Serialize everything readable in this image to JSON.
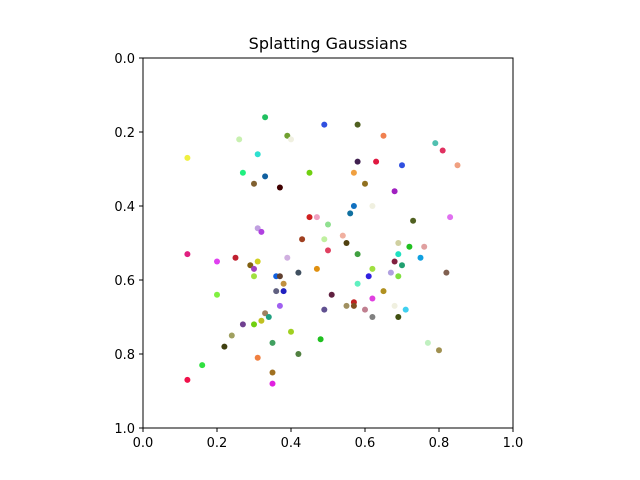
{
  "chart_data": {
    "type": "scatter",
    "title": "Splatting Gaussians",
    "xlabel": "",
    "ylabel": "",
    "xlim": [
      0.0,
      1.0
    ],
    "ylim": [
      1.0,
      0.0
    ],
    "y_inverted": true,
    "grid": false,
    "legend": "none",
    "x_ticks": [
      "0.0",
      "0.2",
      "0.4",
      "0.6",
      "0.8",
      "1.0"
    ],
    "y_ticks": [
      "0.0",
      "0.2",
      "0.4",
      "0.6",
      "0.8",
      "1.0"
    ],
    "points": [
      {
        "x": 0.31,
        "y": 0.26,
        "color": "#2ee0d0"
      },
      {
        "x": 0.26,
        "y": 0.22,
        "color": "#c8f0b0"
      },
      {
        "x": 0.33,
        "y": 0.16,
        "color": "#20c060"
      },
      {
        "x": 0.39,
        "y": 0.21,
        "color": "#70a030"
      },
      {
        "x": 0.4,
        "y": 0.22,
        "color": "#f0f0e0"
      },
      {
        "x": 0.49,
        "y": 0.18,
        "color": "#3050e0"
      },
      {
        "x": 0.58,
        "y": 0.18,
        "color": "#506020"
      },
      {
        "x": 0.65,
        "y": 0.21,
        "color": "#f08050"
      },
      {
        "x": 0.79,
        "y": 0.23,
        "color": "#50c0b0"
      },
      {
        "x": 0.81,
        "y": 0.25,
        "color": "#e03060"
      },
      {
        "x": 0.12,
        "y": 0.27,
        "color": "#f0f040"
      },
      {
        "x": 0.58,
        "y": 0.28,
        "color": "#402050"
      },
      {
        "x": 0.63,
        "y": 0.28,
        "color": "#e01840"
      },
      {
        "x": 0.7,
        "y": 0.29,
        "color": "#3050e0"
      },
      {
        "x": 0.85,
        "y": 0.29,
        "color": "#f0a080"
      },
      {
        "x": 0.27,
        "y": 0.31,
        "color": "#20f080"
      },
      {
        "x": 0.45,
        "y": 0.31,
        "color": "#70d010"
      },
      {
        "x": 0.57,
        "y": 0.31,
        "color": "#f0a040"
      },
      {
        "x": 0.33,
        "y": 0.32,
        "color": "#1060a0"
      },
      {
        "x": 0.3,
        "y": 0.34,
        "color": "#806030"
      },
      {
        "x": 0.6,
        "y": 0.34,
        "color": "#907020"
      },
      {
        "x": 0.37,
        "y": 0.35,
        "color": "#400000"
      },
      {
        "x": 0.68,
        "y": 0.36,
        "color": "#a020c0"
      },
      {
        "x": 0.62,
        "y": 0.4,
        "color": "#f0f0e0"
      },
      {
        "x": 0.57,
        "y": 0.4,
        "color": "#1070c0"
      },
      {
        "x": 0.56,
        "y": 0.42,
        "color": "#1070a0"
      },
      {
        "x": 0.45,
        "y": 0.43,
        "color": "#d02020"
      },
      {
        "x": 0.47,
        "y": 0.43,
        "color": "#f0a0c0"
      },
      {
        "x": 0.73,
        "y": 0.44,
        "color": "#506020"
      },
      {
        "x": 0.83,
        "y": 0.43,
        "color": "#e070f0"
      },
      {
        "x": 0.5,
        "y": 0.45,
        "color": "#90e090"
      },
      {
        "x": 0.31,
        "y": 0.46,
        "color": "#c0a0e0"
      },
      {
        "x": 0.32,
        "y": 0.47,
        "color": "#b040e0"
      },
      {
        "x": 0.54,
        "y": 0.48,
        "color": "#f0b0a0"
      },
      {
        "x": 0.43,
        "y": 0.49,
        "color": "#a04020"
      },
      {
        "x": 0.49,
        "y": 0.49,
        "color": "#c0f0a0"
      },
      {
        "x": 0.55,
        "y": 0.5,
        "color": "#504010"
      },
      {
        "x": 0.69,
        "y": 0.5,
        "color": "#d0d0a0"
      },
      {
        "x": 0.72,
        "y": 0.51,
        "color": "#20c020"
      },
      {
        "x": 0.76,
        "y": 0.51,
        "color": "#e0a0a0"
      },
      {
        "x": 0.5,
        "y": 0.52,
        "color": "#e04060"
      },
      {
        "x": 0.58,
        "y": 0.53,
        "color": "#40a040"
      },
      {
        "x": 0.69,
        "y": 0.53,
        "color": "#20e0c0"
      },
      {
        "x": 0.12,
        "y": 0.53,
        "color": "#e02080"
      },
      {
        "x": 0.25,
        "y": 0.54,
        "color": "#c02030"
      },
      {
        "x": 0.31,
        "y": 0.55,
        "color": "#d0d020"
      },
      {
        "x": 0.39,
        "y": 0.54,
        "color": "#d0b0e0"
      },
      {
        "x": 0.75,
        "y": 0.54,
        "color": "#10a0e0"
      },
      {
        "x": 0.68,
        "y": 0.55,
        "color": "#802040"
      },
      {
        "x": 0.2,
        "y": 0.55,
        "color": "#e040f0"
      },
      {
        "x": 0.29,
        "y": 0.56,
        "color": "#806010"
      },
      {
        "x": 0.3,
        "y": 0.57,
        "color": "#a040c0"
      },
      {
        "x": 0.47,
        "y": 0.57,
        "color": "#e09010"
      },
      {
        "x": 0.62,
        "y": 0.57,
        "color": "#a0e040"
      },
      {
        "x": 0.7,
        "y": 0.56,
        "color": "#20a070"
      },
      {
        "x": 0.82,
        "y": 0.58,
        "color": "#806050"
      },
      {
        "x": 0.42,
        "y": 0.58,
        "color": "#405060"
      },
      {
        "x": 0.67,
        "y": 0.58,
        "color": "#b0a0e0"
      },
      {
        "x": 0.3,
        "y": 0.59,
        "color": "#a0e040"
      },
      {
        "x": 0.36,
        "y": 0.59,
        "color": "#1060e0"
      },
      {
        "x": 0.37,
        "y": 0.59,
        "color": "#604030"
      },
      {
        "x": 0.61,
        "y": 0.59,
        "color": "#3020e0"
      },
      {
        "x": 0.69,
        "y": 0.59,
        "color": "#80e040"
      },
      {
        "x": 0.38,
        "y": 0.61,
        "color": "#c09040"
      },
      {
        "x": 0.58,
        "y": 0.61,
        "color": "#60f0c0"
      },
      {
        "x": 0.36,
        "y": 0.63,
        "color": "#606080"
      },
      {
        "x": 0.38,
        "y": 0.63,
        "color": "#2020c0"
      },
      {
        "x": 0.65,
        "y": 0.63,
        "color": "#b09020"
      },
      {
        "x": 0.2,
        "y": 0.64,
        "color": "#80f040"
      },
      {
        "x": 0.51,
        "y": 0.64,
        "color": "#602040"
      },
      {
        "x": 0.62,
        "y": 0.65,
        "color": "#e040e0"
      },
      {
        "x": 0.57,
        "y": 0.66,
        "color": "#c02020"
      },
      {
        "x": 0.37,
        "y": 0.67,
        "color": "#a060f0"
      },
      {
        "x": 0.55,
        "y": 0.67,
        "color": "#a09060"
      },
      {
        "x": 0.57,
        "y": 0.67,
        "color": "#805020"
      },
      {
        "x": 0.49,
        "y": 0.68,
        "color": "#605090"
      },
      {
        "x": 0.6,
        "y": 0.68,
        "color": "#c08090"
      },
      {
        "x": 0.68,
        "y": 0.67,
        "color": "#f0f0e0"
      },
      {
        "x": 0.71,
        "y": 0.68,
        "color": "#40d0f0"
      },
      {
        "x": 0.33,
        "y": 0.69,
        "color": "#a08060"
      },
      {
        "x": 0.34,
        "y": 0.7,
        "color": "#20a080"
      },
      {
        "x": 0.32,
        "y": 0.71,
        "color": "#c0c020"
      },
      {
        "x": 0.62,
        "y": 0.7,
        "color": "#808080"
      },
      {
        "x": 0.69,
        "y": 0.7,
        "color": "#405010"
      },
      {
        "x": 0.27,
        "y": 0.72,
        "color": "#704090"
      },
      {
        "x": 0.3,
        "y": 0.72,
        "color": "#70d010"
      },
      {
        "x": 0.24,
        "y": 0.75,
        "color": "#a0a060"
      },
      {
        "x": 0.4,
        "y": 0.74,
        "color": "#a0d020"
      },
      {
        "x": 0.48,
        "y": 0.76,
        "color": "#20c020"
      },
      {
        "x": 0.77,
        "y": 0.77,
        "color": "#c0f0c0"
      },
      {
        "x": 0.35,
        "y": 0.77,
        "color": "#40a060"
      },
      {
        "x": 0.22,
        "y": 0.78,
        "color": "#404010"
      },
      {
        "x": 0.8,
        "y": 0.79,
        "color": "#a09050"
      },
      {
        "x": 0.42,
        "y": 0.8,
        "color": "#508040"
      },
      {
        "x": 0.31,
        "y": 0.81,
        "color": "#f08040"
      },
      {
        "x": 0.16,
        "y": 0.83,
        "color": "#30e040"
      },
      {
        "x": 0.35,
        "y": 0.85,
        "color": "#a07020"
      },
      {
        "x": 0.12,
        "y": 0.87,
        "color": "#f0104a"
      },
      {
        "x": 0.35,
        "y": 0.88,
        "color": "#e020e0"
      }
    ]
  }
}
